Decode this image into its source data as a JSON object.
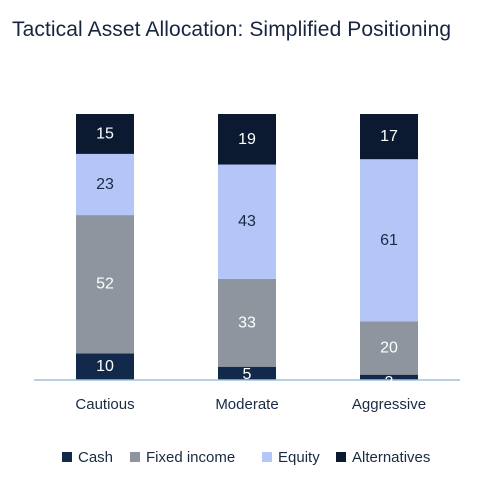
{
  "chart_data": {
    "type": "bar",
    "stacked": true,
    "title": "Tactical Asset Allocation: Simplified Positioning",
    "categories": [
      "Cautious",
      "Moderate",
      "Aggressive"
    ],
    "series": [
      {
        "name": "Cash",
        "values": [
          10,
          5,
          2
        ],
        "color": "#13294b",
        "label_color": "#ffffff"
      },
      {
        "name": "Fixed income",
        "values": [
          52,
          33,
          20
        ],
        "color": "#8f959e",
        "label_color": "#ffffff"
      },
      {
        "name": "Equity",
        "values": [
          23,
          43,
          61
        ],
        "color": "#b3c6f7",
        "label_color": "#1a2a44"
      },
      {
        "name": "Alternatives",
        "values": [
          15,
          19,
          17
        ],
        "color": "#0b1a30",
        "label_color": "#ffffff"
      }
    ],
    "ylim": [
      0,
      100
    ],
    "legend_position": "bottom",
    "grid": false,
    "baseline_color": "#9fc0dd"
  }
}
